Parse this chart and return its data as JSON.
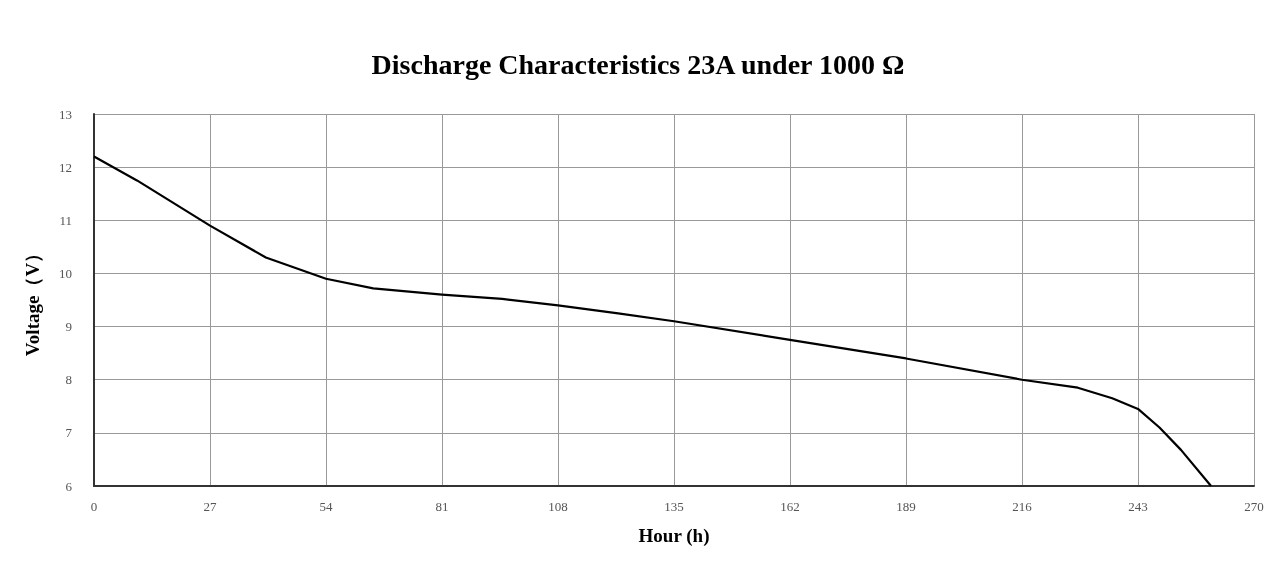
{
  "chart_data": {
    "type": "line",
    "title": "Discharge Characteristics 23A under 1000 Ω",
    "xlabel": "Hour (h)",
    "ylabel": "Voltage（V）",
    "x": [
      0,
      10,
      27,
      40,
      54,
      65,
      81,
      95,
      108,
      122,
      135,
      162,
      189,
      216,
      229,
      237,
      243,
      248,
      253,
      260
    ],
    "series": [
      {
        "color": "#000000",
        "values": [
          12.2,
          11.75,
          10.9,
          10.3,
          9.9,
          9.72,
          9.6,
          9.52,
          9.4,
          9.25,
          9.1,
          8.75,
          8.4,
          8.0,
          7.85,
          7.65,
          7.45,
          7.1,
          6.68,
          6.0
        ]
      }
    ],
    "xlim": [
      0,
      270
    ],
    "xticks": [
      0,
      27,
      54,
      81,
      108,
      135,
      162,
      189,
      216,
      243,
      270
    ],
    "ylim": [
      6,
      13
    ],
    "yticks": [
      6,
      7,
      8,
      9,
      10,
      11,
      12,
      13
    ],
    "grid": true,
    "marker": "none",
    "line_style": "solid"
  }
}
